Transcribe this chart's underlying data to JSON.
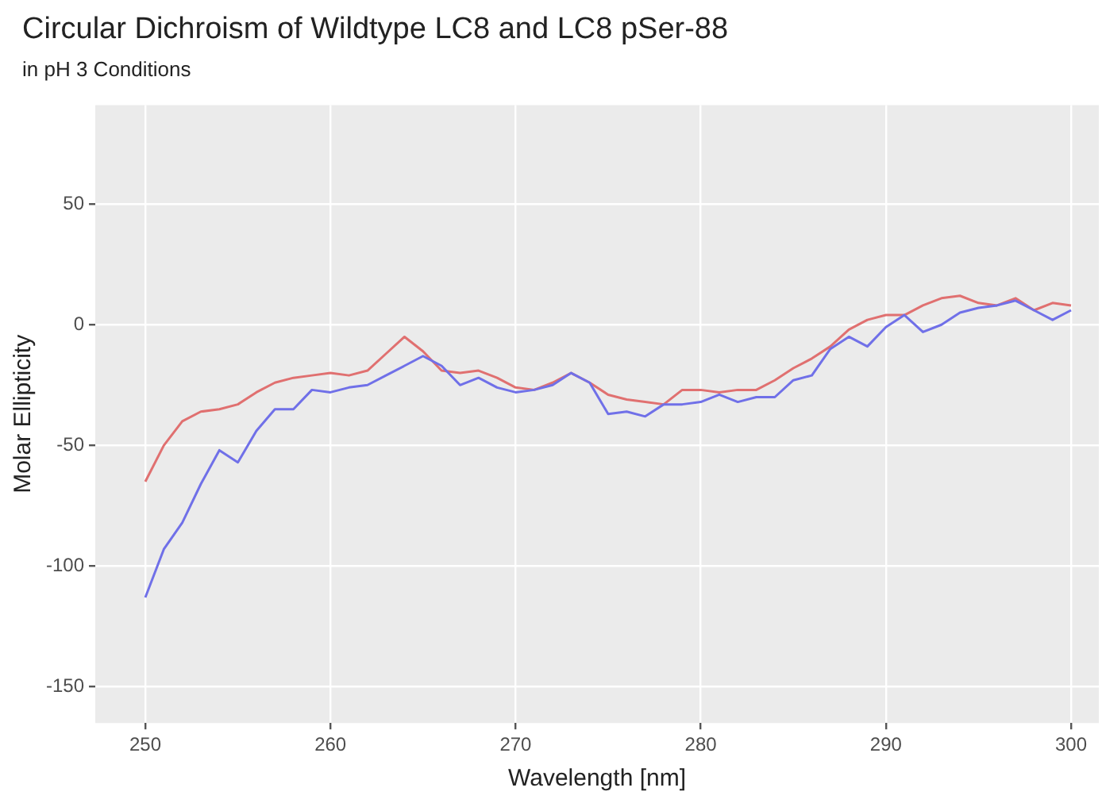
{
  "chart_data": {
    "type": "line",
    "title": "Circular Dichroism of Wildtype LC8 and LC8 pSer-88",
    "subtitle": "in pH 3 Conditions",
    "xlabel": "Wavelength [nm]",
    "ylabel": "Molar Ellipticity",
    "x": [
      250,
      251,
      252,
      253,
      254,
      255,
      256,
      257,
      258,
      259,
      260,
      261,
      262,
      263,
      264,
      265,
      266,
      267,
      268,
      269,
      270,
      271,
      272,
      273,
      274,
      275,
      276,
      277,
      278,
      279,
      280,
      281,
      282,
      283,
      284,
      285,
      286,
      287,
      288,
      289,
      290,
      291,
      292,
      293,
      294,
      295,
      296,
      297,
      298,
      299,
      300
    ],
    "series": [
      {
        "color": "#7070e8",
        "values": [
          -113,
          -93,
          -82,
          -66,
          -52,
          -57,
          -44,
          -35,
          -35,
          -27,
          -28,
          -26,
          -25,
          -21,
          -17,
          -13,
          -17,
          -25,
          -22,
          -26,
          -28,
          -27,
          -25,
          -20,
          -24,
          -37,
          -36,
          -38,
          -33,
          -33,
          -32,
          -29,
          -32,
          -30,
          -30,
          -23,
          -21,
          -10,
          -5,
          -9,
          -1,
          4,
          -3,
          0,
          5,
          7,
          8,
          10,
          6,
          2,
          6
        ]
      },
      {
        "color": "#e07070",
        "values": [
          -65,
          -50,
          -40,
          -36,
          -35,
          -33,
          -28,
          -24,
          -22,
          -21,
          -20,
          -21,
          -19,
          -12,
          -5,
          -11,
          -19,
          -20,
          -19,
          -22,
          -26,
          -27,
          -24,
          -20,
          -24,
          -29,
          -31,
          -32,
          -33,
          -27,
          -27,
          -28,
          -27,
          -27,
          -23,
          -18,
          -14,
          -9,
          -2,
          2,
          4,
          4,
          8,
          11,
          12,
          9,
          8,
          11,
          6,
          9,
          8
        ]
      }
    ],
    "xlim": [
      247.3,
      301.5
    ],
    "ylim": [
      -165,
      91
    ],
    "xticks": [
      250,
      260,
      270,
      280,
      290,
      300
    ],
    "yticks": [
      -150,
      -100,
      -50,
      0,
      50
    ],
    "grid": true,
    "legend": false,
    "marker": "none",
    "line_style": "solid"
  }
}
